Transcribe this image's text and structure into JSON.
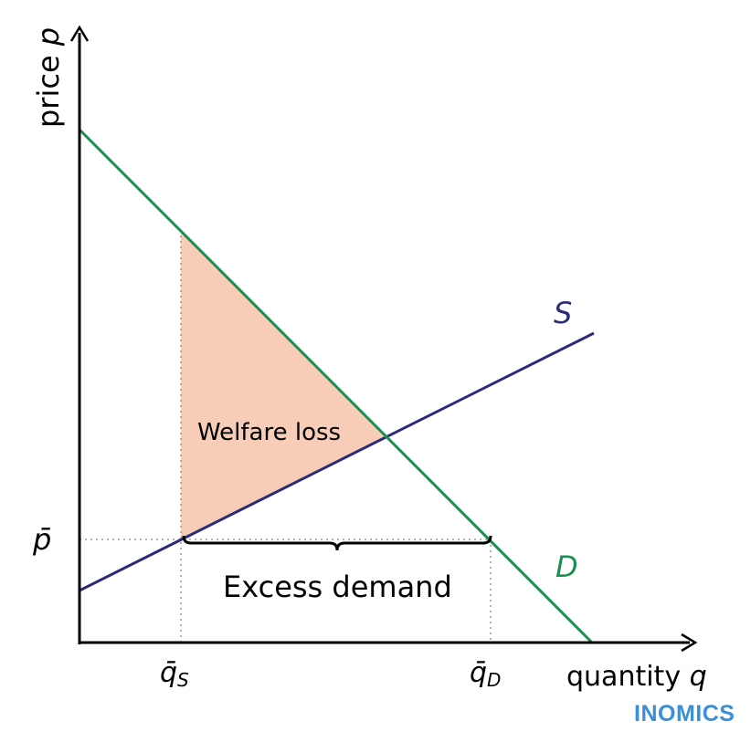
{
  "labels": {
    "y_axis_text": "price",
    "y_axis_symbol": "p",
    "x_axis_text": "quantity",
    "x_axis_symbol": "q",
    "supply": "S",
    "demand": "D",
    "price_control": "p̄",
    "qs_letter": "q̄",
    "qs_sub": "S",
    "qd_letter": "q̄",
    "qd_sub": "D",
    "welfare_loss": "Welfare loss",
    "excess_demand": "Excess demand",
    "brand": "INOMICS"
  },
  "colors": {
    "demand": "#1a8f4f",
    "supply": "#2c2c78",
    "welfare_fill": "#f8cdb8",
    "brand": "#3b8fd6",
    "axis": "#000000",
    "guide": "#888888"
  }
}
